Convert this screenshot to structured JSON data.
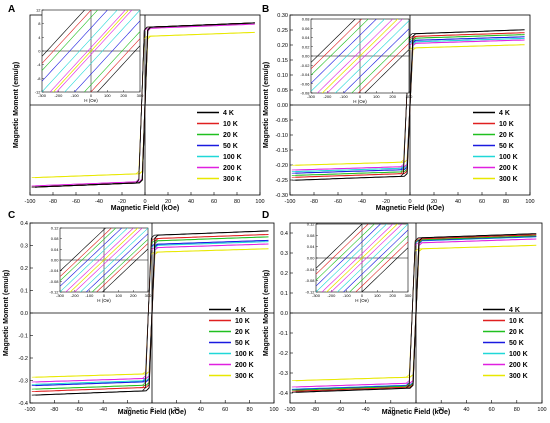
{
  "figure": {
    "shared_ylabel": "Magnetic Moment (emu/g)",
    "shared_xlabel": "Magnetic Field (kOe)"
  },
  "chart_data": [
    {
      "panel": "A",
      "type": "line",
      "xlabel": "Magnetic Field (kOe)",
      "ylabel": "Magnetic Moment (emu/g)",
      "xlim": [
        -100,
        100
      ],
      "ylim": [
        -80,
        80
      ],
      "xticks": [
        -100,
        -80,
        -60,
        -40,
        -20,
        0,
        20,
        40,
        60,
        80,
        100
      ],
      "yticks": [],
      "legend_position": "bottom-right",
      "series": [
        {
          "name": "4 K",
          "color": "#000000",
          "saturation": 69
        },
        {
          "name": "10 K",
          "color": "#e02020",
          "saturation": 69
        },
        {
          "name": "20 K",
          "color": "#20c020",
          "saturation": 69
        },
        {
          "name": "50 K",
          "color": "#1a1ae0",
          "saturation": 69
        },
        {
          "name": "100 K",
          "color": "#20d8d8",
          "saturation": 69
        },
        {
          "name": "200 K",
          "color": "#e020e0",
          "saturation": 68
        },
        {
          "name": "300 K",
          "color": "#e8e800",
          "saturation": 61
        }
      ],
      "inset": {
        "xlabel": "H (Oe)",
        "xlim": [
          -300,
          300
        ],
        "ylim": [
          -12,
          12
        ],
        "xticks": [
          -300,
          -200,
          -100,
          0,
          100,
          200,
          300
        ],
        "yticks": [
          -12,
          -8,
          -4,
          0,
          4,
          8,
          12
        ],
        "coercivity": [
          270,
          230,
          190,
          130,
          70,
          20,
          0
        ]
      }
    },
    {
      "panel": "B",
      "type": "line",
      "xlabel": "Magnetic Field (kOe)",
      "ylabel": "Magnetic Moment (emu/g)",
      "xlim": [
        -100,
        100
      ],
      "ylim": [
        -0.3,
        0.3
      ],
      "xticks": [
        -100,
        -80,
        -60,
        -40,
        -20,
        0,
        20,
        40,
        60,
        80,
        100
      ],
      "yticks": [
        -0.3,
        -0.25,
        -0.2,
        -0.15,
        -0.1,
        -0.05,
        0.0,
        0.05,
        0.1,
        0.15,
        0.2,
        0.25,
        0.3
      ],
      "legend_position": "bottom-right",
      "series": [
        {
          "name": "4 K",
          "color": "#000000",
          "saturation": 0.237
        },
        {
          "name": "10 K",
          "color": "#e02020",
          "saturation": 0.228
        },
        {
          "name": "20 K",
          "color": "#20c020",
          "saturation": 0.222
        },
        {
          "name": "50 K",
          "color": "#1a1ae0",
          "saturation": 0.215
        },
        {
          "name": "100 K",
          "color": "#20d8d8",
          "saturation": 0.21
        },
        {
          "name": "200 K",
          "color": "#e020e0",
          "saturation": 0.205
        },
        {
          "name": "300 K",
          "color": "#e8e800",
          "saturation": 0.19
        }
      ],
      "inset": {
        "xlabel": "H (Oe)",
        "xlim": [
          -300,
          300
        ],
        "ylim": [
          -0.08,
          0.08
        ],
        "xticks": [
          -300,
          -200,
          -100,
          0,
          100,
          200,
          300
        ],
        "yticks": [
          -0.08,
          -0.06,
          -0.04,
          -0.02,
          0.0,
          0.02,
          0.04,
          0.06,
          0.08
        ],
        "coercivity": [
          260,
          220,
          180,
          130,
          80,
          30,
          0
        ]
      }
    },
    {
      "panel": "C",
      "type": "line",
      "xlabel": "Magnetic Field (kOe)",
      "ylabel": "Magnetic Moment (emu/g)",
      "xlim": [
        -100,
        100
      ],
      "ylim": [
        -0.4,
        0.4
      ],
      "xticks": [
        -100,
        -80,
        -60,
        -40,
        -20,
        0,
        20,
        40,
        60,
        80,
        100
      ],
      "yticks": [
        -0.4,
        -0.3,
        -0.2,
        -0.1,
        0.0,
        0.1,
        0.2,
        0.3,
        0.4
      ],
      "legend_position": "bottom-right",
      "series": [
        {
          "name": "4 K",
          "color": "#000000",
          "saturation": 0.345
        },
        {
          "name": "10 K",
          "color": "#e02020",
          "saturation": 0.33
        },
        {
          "name": "20 K",
          "color": "#20c020",
          "saturation": 0.32
        },
        {
          "name": "50 K",
          "color": "#1a1ae0",
          "saturation": 0.305
        },
        {
          "name": "100 K",
          "color": "#20d8d8",
          "saturation": 0.3
        },
        {
          "name": "200 K",
          "color": "#e020e0",
          "saturation": 0.29
        },
        {
          "name": "300 K",
          "color": "#e8e800",
          "saturation": 0.27
        }
      ],
      "inset": {
        "xlabel": "H (Oe)",
        "xlim": [
          -300,
          300
        ],
        "ylim": [
          -0.12,
          0.12
        ],
        "xticks": [
          -300,
          -200,
          -100,
          0,
          100,
          200,
          300
        ],
        "yticks": [
          -0.12,
          -0.08,
          -0.04,
          0.0,
          0.04,
          0.08,
          0.12
        ],
        "coercivity": [
          220,
          180,
          150,
          110,
          70,
          30,
          0
        ]
      }
    },
    {
      "panel": "D",
      "type": "line",
      "xlabel": "Magnetic Field (kOe)",
      "ylabel": "Magnetic Moment (emu/g)",
      "xlim": [
        -100,
        100
      ],
      "ylim": [
        -0.45,
        0.45
      ],
      "xticks": [
        -100,
        -80,
        -60,
        -40,
        -20,
        0,
        20,
        40,
        60,
        80,
        100
      ],
      "yticks": [
        -0.4,
        -0.3,
        -0.2,
        -0.1,
        0.0,
        0.1,
        0.2,
        0.3,
        0.4
      ],
      "legend_position": "bottom-right",
      "series": [
        {
          "name": "4 K",
          "color": "#000000",
          "saturation": 0.375
        },
        {
          "name": "10 K",
          "color": "#e02020",
          "saturation": 0.37
        },
        {
          "name": "20 K",
          "color": "#20c020",
          "saturation": 0.365
        },
        {
          "name": "50 K",
          "color": "#1a1ae0",
          "saturation": 0.362
        },
        {
          "name": "100 K",
          "color": "#20d8d8",
          "saturation": 0.36
        },
        {
          "name": "200 K",
          "color": "#e020e0",
          "saturation": 0.35
        },
        {
          "name": "300 K",
          "color": "#e8e800",
          "saturation": 0.32
        }
      ],
      "inset": {
        "xlabel": "H (Oe)",
        "xlim": [
          -300,
          300
        ],
        "ylim": [
          -0.12,
          0.12
        ],
        "xticks": [
          -300,
          -200,
          -100,
          0,
          100,
          200,
          300
        ],
        "yticks": [
          -0.12,
          -0.08,
          -0.04,
          0.0,
          0.04,
          0.08,
          0.12
        ],
        "coercivity": [
          230,
          190,
          150,
          110,
          70,
          30,
          0
        ]
      }
    }
  ]
}
